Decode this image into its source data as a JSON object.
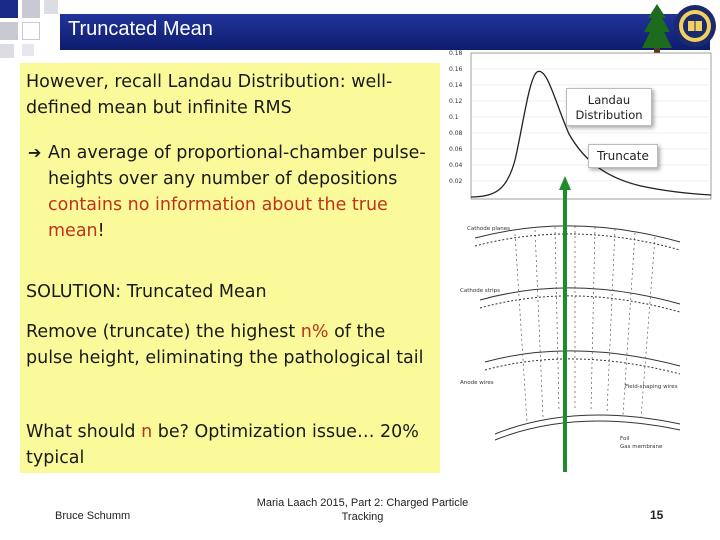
{
  "slide": {
    "title": "Truncated Mean",
    "paragraphs": {
      "p1": "However, recall Landau Distribution: well-defined mean but infinite RMS",
      "p2_prefix": "An average of proportional-chamber pulse-heights over any number of depositions ",
      "p2_highlight": "contains no information about the true mean",
      "p2_suffix": "!",
      "p3": "SOLUTION: Truncated Mean",
      "p4_prefix": "Remove (truncate) the highest ",
      "p4_highlight": "n%",
      "p4_suffix": " of the pulse height, eliminating the pathological tail",
      "p5_prefix": "What should ",
      "p5_highlight": "n",
      "p5_suffix": " be? Optimization issue… 20% typical"
    },
    "callouts": {
      "landau_line1": "Landau",
      "landau_line2": "Distribution",
      "truncate": "Truncate"
    },
    "plot_ticks": [
      "0.18",
      "0.16",
      "0.14",
      "0.12",
      "0.1",
      "0.08",
      "0.06",
      "0.04",
      "0.02"
    ],
    "chamber_labels": {
      "cathode_planes": "Cathode planes",
      "cathode_strips": "Cathode strips",
      "anode_wires": "Anode wires",
      "field_shaping": "Field-shaping wires",
      "foil": "Foil",
      "gas_membrane": "Gas membrane"
    },
    "footer": {
      "author": "Bruce Schumm",
      "event_line1": "Maria Laach 2015, Part 2: Charged Particle",
      "event_line2": "Tracking",
      "page": "15"
    },
    "colors": {
      "title_bar": "#1a2a88",
      "yellow_box": "#fbfa9b",
      "highlight_red": "#c0321a",
      "truncate_line": "#1e8c2a"
    },
    "icons": [
      "arrow-right-icon",
      "tree-icon",
      "university-seal-icon"
    ]
  }
}
